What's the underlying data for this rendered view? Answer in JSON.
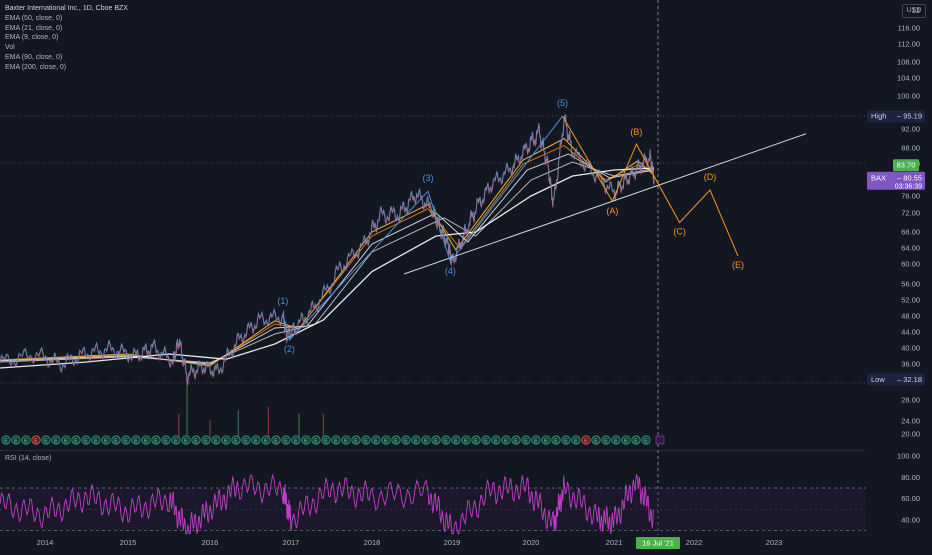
{
  "header": {
    "title": "Baxter International Inc., 1D, Cboe BZX",
    "indicators": [
      "EMA (50, close, 0)",
      "EMA (21, close, 0)",
      "EMA (9, close, 0)",
      "Vol",
      "EMA (90, close, 0)",
      "EMA (200, close, 0)"
    ],
    "currency": "USD"
  },
  "rsi_pane": {
    "legend": "RSI (14, close)",
    "ticks": [
      100,
      80,
      60,
      40
    ],
    "band_upper": 70,
    "band_lower": 30,
    "line_color": "#c03fc8"
  },
  "price_axis": {
    "ticks": [
      "116.00",
      "112.00",
      "108.00",
      "104.00",
      "100.00",
      "96.00",
      "92.00",
      "88.00",
      "84.00",
      "80.00",
      "76.00",
      "72.00",
      "68.00",
      "64.00",
      "60.00",
      "56.00",
      "52.00",
      "48.00",
      "44.00",
      "40.00",
      "36.00",
      "32.00",
      "28.00",
      "24.00",
      "20.00"
    ],
    "top_partial": "12"
  },
  "time_axis": {
    "labels": [
      "2014",
      "2015",
      "2016",
      "2017",
      "2018",
      "2019",
      "2020",
      "2021",
      "2022",
      "2023"
    ],
    "cursor_label": "16 Jul '21"
  },
  "badges": {
    "high": {
      "label": "High",
      "value": "95.19",
      "color": "#1e2340",
      "text_color": "#d1d4dc"
    },
    "low": {
      "label": "Low",
      "value": "32.18",
      "color": "#1e2340",
      "text_color": "#d1d4dc"
    },
    "marker": {
      "value": "83.70",
      "color": "#4caf50"
    },
    "last": {
      "symbol": "BAX",
      "value": "80.55",
      "countdown": "03:36:39",
      "color": "#7e57c2"
    }
  },
  "chart_data": {
    "type": "line",
    "title": "Baxter International Inc., 1D, Cboe BZX",
    "ylim": [
      18,
      122
    ],
    "x_unit": "year",
    "xlim": [
      2013.55,
      2023.9
    ],
    "price_points": [
      [
        2013.55,
        36.5
      ],
      [
        2013.9,
        38.5
      ],
      [
        2014.2,
        36.0
      ],
      [
        2014.5,
        38.8
      ],
      [
        2014.8,
        39.8
      ],
      [
        2015.1,
        38.0
      ],
      [
        2015.3,
        40.3
      ],
      [
        2015.55,
        36.8
      ],
      [
        2015.62,
        42.0
      ],
      [
        2015.72,
        33.2
      ],
      [
        2015.9,
        35.5
      ],
      [
        2016.1,
        34.2
      ],
      [
        2016.35,
        42.0
      ],
      [
        2016.6,
        47.0
      ],
      [
        2016.9,
        48.0
      ],
      [
        2016.95,
        43.0
      ],
      [
        2017.05,
        45.0
      ],
      [
        2017.3,
        50.5
      ],
      [
        2017.6,
        59.0
      ],
      [
        2017.9,
        65.0
      ],
      [
        2018.1,
        71.5
      ],
      [
        2018.35,
        72.0
      ],
      [
        2018.55,
        76.5
      ],
      [
        2018.75,
        73.0
      ],
      [
        2018.85,
        69.0
      ],
      [
        2018.95,
        65.0
      ],
      [
        2019.0,
        60.5
      ],
      [
        2019.15,
        67.0
      ],
      [
        2019.3,
        73.0
      ],
      [
        2019.5,
        79.0
      ],
      [
        2019.75,
        83.0
      ],
      [
        2019.95,
        88.0
      ],
      [
        2020.1,
        91.5
      ],
      [
        2020.2,
        84.0
      ],
      [
        2020.27,
        74.0
      ],
      [
        2020.4,
        94.8
      ],
      [
        2020.5,
        87.0
      ],
      [
        2020.75,
        82.0
      ],
      [
        2021.0,
        76.8
      ],
      [
        2021.15,
        80.0
      ],
      [
        2021.3,
        83.0
      ],
      [
        2021.45,
        86.0
      ],
      [
        2021.5,
        80.55
      ]
    ],
    "wave_points": [
      {
        "label": "(1)",
        "x": 2016.9,
        "y": 48.5,
        "color": "#4a90d9"
      },
      {
        "label": "(2)",
        "x": 2016.98,
        "y": 42.0,
        "color": "#4a90d9"
      },
      {
        "label": "(3)",
        "x": 2018.7,
        "y": 77.2,
        "color": "#4a90d9"
      },
      {
        "label": "(4)",
        "x": 2018.98,
        "y": 60.5,
        "color": "#4a90d9"
      },
      {
        "label": "(5)",
        "x": 2020.38,
        "y": 95.2,
        "color": "#4a90d9"
      },
      {
        "label": "(A)",
        "x": 2020.98,
        "y": 74.8,
        "color": "#f7931a"
      },
      {
        "label": "(B)",
        "x": 2021.28,
        "y": 88.8,
        "color": "#f7931a"
      },
      {
        "label": "(C)",
        "x": 2021.82,
        "y": 70.0,
        "color": "#f7931a"
      },
      {
        "label": "(D)",
        "x": 2022.2,
        "y": 77.5,
        "color": "#f7931a"
      },
      {
        "label": "(E)",
        "x": 2022.55,
        "y": 62.0,
        "color": "#f7931a"
      }
    ],
    "trendline": [
      [
        2018.4,
        58.0
      ],
      [
        2023.4,
        91.0
      ]
    ],
    "series": [
      {
        "name": "EMA (9, close, 0)",
        "color": "#f7c948",
        "values": [
          [
            2013.55,
            37.0
          ],
          [
            2015.0,
            38.5
          ],
          [
            2016.0,
            35.5
          ],
          [
            2016.8,
            46.8
          ],
          [
            2017.1,
            44.8
          ],
          [
            2018.0,
            68.0
          ],
          [
            2018.7,
            74.0
          ],
          [
            2019.05,
            63.5
          ],
          [
            2019.9,
            85.0
          ],
          [
            2020.4,
            90.0
          ],
          [
            2020.9,
            79.5
          ],
          [
            2021.3,
            84.8
          ],
          [
            2021.5,
            81.2
          ]
        ]
      },
      {
        "name": "EMA (21, close, 0)",
        "color": "#f57c00",
        "values": [
          [
            2013.55,
            37.0
          ],
          [
            2015.0,
            38.2
          ],
          [
            2016.0,
            35.8
          ],
          [
            2016.8,
            46.0
          ],
          [
            2017.1,
            45.0
          ],
          [
            2018.0,
            67.0
          ],
          [
            2018.7,
            73.0
          ],
          [
            2019.1,
            64.0
          ],
          [
            2019.9,
            84.0
          ],
          [
            2020.4,
            88.5
          ],
          [
            2020.9,
            80.0
          ],
          [
            2021.3,
            83.8
          ],
          [
            2021.5,
            82.0
          ]
        ]
      },
      {
        "name": "EMA (50, close, 0)",
        "color": "#e0e3eb",
        "values": [
          [
            2013.55,
            36.8
          ],
          [
            2015.0,
            38.0
          ],
          [
            2016.0,
            36.0
          ],
          [
            2016.8,
            45.0
          ],
          [
            2017.2,
            45.5
          ],
          [
            2018.0,
            65.0
          ],
          [
            2018.8,
            72.0
          ],
          [
            2019.2,
            65.5
          ],
          [
            2019.95,
            82.5
          ],
          [
            2020.45,
            86.5
          ],
          [
            2020.95,
            80.5
          ],
          [
            2021.5,
            82.5
          ]
        ]
      },
      {
        "name": "EMA (90, close, 0)",
        "color": "#c9c9c9",
        "values": [
          [
            2013.55,
            36.5
          ],
          [
            2015.0,
            37.8
          ],
          [
            2016.0,
            36.3
          ],
          [
            2016.8,
            43.5
          ],
          [
            2017.3,
            46.0
          ],
          [
            2018.0,
            63.0
          ],
          [
            2018.9,
            71.0
          ],
          [
            2019.3,
            67.0
          ],
          [
            2020.0,
            80.0
          ],
          [
            2020.5,
            84.5
          ],
          [
            2021.0,
            81.0
          ],
          [
            2021.5,
            82.8
          ]
        ]
      },
      {
        "name": "EMA (200, close, 0)",
        "color": "#ffffff",
        "values": [
          [
            2013.55,
            35.0
          ],
          [
            2014.5,
            36.5
          ],
          [
            2015.5,
            38.5
          ],
          [
            2016.2,
            37.2
          ],
          [
            2016.8,
            41.0
          ],
          [
            2017.4,
            47.0
          ],
          [
            2018.0,
            58.5
          ],
          [
            2018.8,
            67.0
          ],
          [
            2019.3,
            68.0
          ],
          [
            2020.0,
            76.0
          ],
          [
            2020.5,
            81.0
          ],
          [
            2021.0,
            82.5
          ],
          [
            2021.5,
            83.0
          ]
        ]
      }
    ],
    "volume_spikes": [
      [
        2015.62,
        22
      ],
      [
        2015.72,
        31
      ],
      [
        2016.0,
        20
      ],
      [
        2016.35,
        23
      ],
      [
        2016.72,
        24
      ],
      [
        2017.1,
        22
      ],
      [
        2017.4,
        22
      ]
    ],
    "rsi_points": [
      [
        2013.55,
        55
      ],
      [
        2014.0,
        45
      ],
      [
        2014.5,
        62
      ],
      [
        2015.0,
        48
      ],
      [
        2015.5,
        60
      ],
      [
        2015.72,
        30
      ],
      [
        2016.0,
        50
      ],
      [
        2016.35,
        72
      ],
      [
        2016.9,
        68
      ],
      [
        2017.0,
        40
      ],
      [
        2017.5,
        70
      ],
      [
        2018.0,
        62
      ],
      [
        2018.7,
        66
      ],
      [
        2019.0,
        30
      ],
      [
        2019.5,
        68
      ],
      [
        2019.95,
        70
      ],
      [
        2020.27,
        35
      ],
      [
        2020.4,
        70
      ],
      [
        2020.8,
        42
      ],
      [
        2021.0,
        38
      ],
      [
        2021.28,
        78
      ],
      [
        2021.5,
        40
      ]
    ]
  }
}
